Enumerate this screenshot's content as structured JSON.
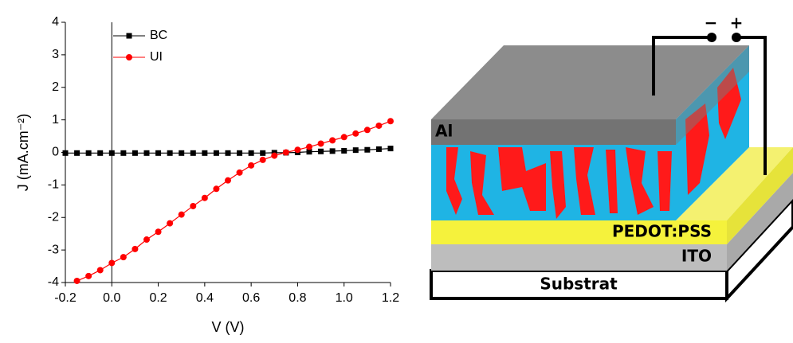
{
  "chart_data": {
    "type": "line",
    "x_label": "V (V)",
    "y_label": "J (mA.cm⁻²)",
    "xlim": [
      -0.2,
      1.2
    ],
    "ylim": [
      -4,
      4
    ],
    "xticks": [
      -0.2,
      {
        "value": 0,
        "label": "0.0"
      },
      0.2,
      0.4,
      0.6,
      0.8,
      {
        "value": 1,
        "label": "1.0"
      },
      1.2
    ],
    "yticks": [
      -4,
      -3,
      -2,
      -1,
      0,
      1,
      2,
      3,
      4
    ],
    "legend": "upper left",
    "series": [
      {
        "name": "BC",
        "color": "#000000",
        "marker": "square",
        "x": [
          -0.2,
          -0.15,
          -0.1,
          -0.05,
          0,
          0.05,
          0.1,
          0.15,
          0.2,
          0.25,
          0.3,
          0.35,
          0.4,
          0.45,
          0.5,
          0.55,
          0.6,
          0.65,
          0.7,
          0.75,
          0.8,
          0.85,
          0.9,
          0.95,
          1.0,
          1.05,
          1.1,
          1.15,
          1.2
        ],
        "values": [
          -0.02,
          -0.02,
          -0.02,
          -0.02,
          -0.02,
          -0.02,
          -0.02,
          -0.02,
          -0.02,
          -0.02,
          -0.02,
          -0.02,
          -0.02,
          -0.02,
          -0.02,
          -0.02,
          -0.02,
          -0.02,
          -0.01,
          -0.01,
          0.0,
          0.02,
          0.03,
          0.04,
          0.05,
          0.07,
          0.08,
          0.1,
          0.12
        ]
      },
      {
        "name": "UI",
        "color": "#ff0000",
        "marker": "circle",
        "x": [
          -0.15,
          -0.1,
          -0.05,
          0,
          0.05,
          0.1,
          0.15,
          0.2,
          0.25,
          0.3,
          0.35,
          0.4,
          0.45,
          0.5,
          0.55,
          0.6,
          0.65,
          0.7,
          0.75,
          0.8,
          0.85,
          0.9,
          0.95,
          1.0,
          1.05,
          1.1,
          1.15,
          1.2
        ],
        "values": [
          -3.95,
          -3.8,
          -3.62,
          -3.4,
          -3.22,
          -2.97,
          -2.68,
          -2.44,
          -2.18,
          -1.91,
          -1.65,
          -1.4,
          -1.12,
          -0.86,
          -0.62,
          -0.4,
          -0.23,
          -0.1,
          0.0,
          0.08,
          0.17,
          0.27,
          0.37,
          0.47,
          0.58,
          0.69,
          0.82,
          0.96
        ]
      }
    ]
  },
  "diagram": {
    "top_electrode": "Al",
    "buffer_layer": "PEDOT:PSS",
    "anode": "ITO",
    "substrate": "Substrat",
    "minus": "−",
    "plus": "+"
  }
}
